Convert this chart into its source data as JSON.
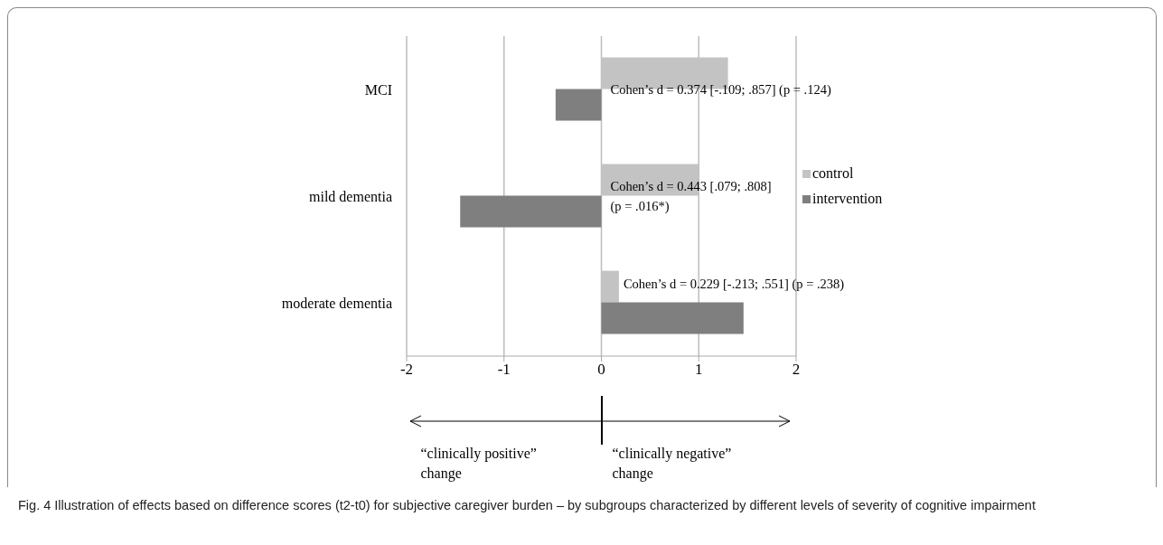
{
  "chart_data": {
    "type": "bar",
    "orientation": "horizontal",
    "title": "Fig. 4 Illustration of effects based on difference scores (t2-t0) for subjective caregiver burden – by subgroups characterized by different levels of severity of cognitive impairment",
    "categories": [
      "MCI",
      "mild dementia",
      "moderate dementia"
    ],
    "series": [
      {
        "name": "control",
        "color": "#c3c3c3",
        "values": [
          1.3,
          1.0,
          0.18
        ]
      },
      {
        "name": "intervention",
        "color": "#7f7f7f",
        "values": [
          -0.47,
          -1.45,
          1.46
        ]
      }
    ],
    "xlim": [
      -2,
      2
    ],
    "xticks": [
      -2,
      -1,
      0,
      1,
      2
    ],
    "grid": "x",
    "legend": "right",
    "annotations": [
      {
        "text": "Cohen’s d = 0.374 [-.109; .857] (p = .124)",
        "y": "MCI"
      },
      {
        "text": "Cohen’s d = 0.443 [.079; .808]\n(p = .016*)",
        "y": "mild dementia"
      },
      {
        "text": "Cohen’s d = 0.229 [-.213; .551] (p = .238)",
        "y": "moderate dementia"
      },
      "“clinically positive” change",
      "“clinically negative” change"
    ]
  }
}
